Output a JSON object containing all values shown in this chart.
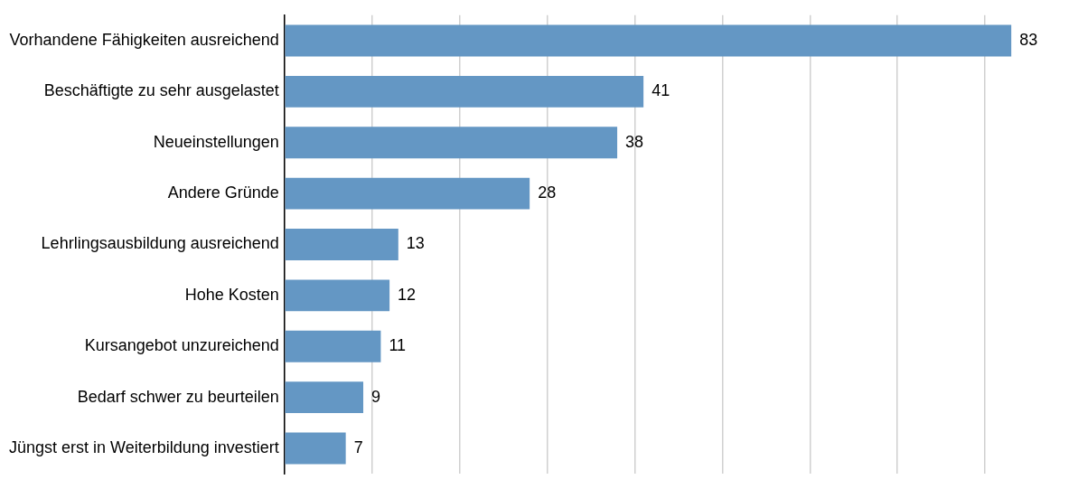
{
  "chart_data": {
    "type": "bar",
    "orientation": "horizontal",
    "categories": [
      "Vorhandene Fähigkeiten ausreichend",
      "Beschäftigte zu sehr ausgelastet",
      "Neueinstellungen",
      "Andere Gründe",
      "Lehrlingsausbildung ausreichend",
      "Hohe Kosten",
      "Kursangebot unzureichend",
      "Bedarf schwer zu beurteilen",
      "Jüngst erst in Weiterbildung investiert"
    ],
    "values": [
      83,
      41,
      38,
      28,
      13,
      12,
      11,
      9,
      7
    ],
    "color": "#6497c4",
    "xticks": [
      {
        "value": 0,
        "label": null
      },
      {
        "value": 10,
        "label": null
      },
      {
        "value": 20,
        "label": null
      },
      {
        "value": 30,
        "label": null
      },
      {
        "value": 40,
        "label": null
      },
      {
        "value": 50,
        "label": null
      },
      {
        "value": 60,
        "label": null
      },
      {
        "value": 70,
        "label": null
      },
      {
        "value": 80,
        "label": null
      }
    ],
    "grid": "x",
    "tick_labels": "y",
    "data_labels": true
  }
}
